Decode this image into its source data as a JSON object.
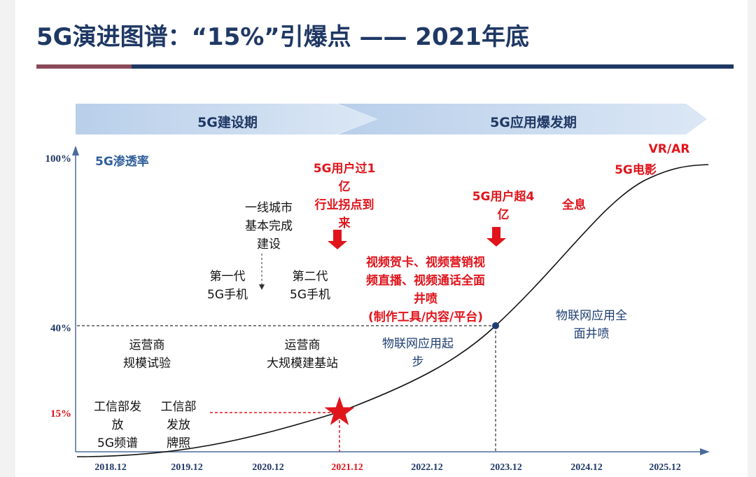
{
  "title": "5G演进图谱：“15%”引爆点 —— 2021年底",
  "phases": [
    {
      "label": "5G建设期"
    },
    {
      "label": "5G应用爆发期"
    }
  ],
  "y_axis_label": "5G渗透率",
  "y_ticks": [
    "100%",
    "40%",
    "15%"
  ],
  "x_ticks": [
    "2018.12",
    "2019.12",
    "2020.12",
    "2021.12",
    "2022.12",
    "2023.12",
    "2024.12",
    "2025.12"
  ],
  "highlight_tick": "2021.12",
  "milestones": [
    {
      "lines": [
        "工信部发",
        "放",
        "5G频谱"
      ]
    },
    {
      "lines": [
        "工信部",
        "发放",
        "牌照"
      ]
    },
    {
      "lines": [
        "运营商",
        "规模试验"
      ]
    },
    {
      "lines": [
        "运营商",
        "大规模建基站"
      ]
    },
    {
      "lines": [
        "第一代",
        "5G手机"
      ]
    },
    {
      "lines": [
        "第二代",
        "5G手机"
      ]
    },
    {
      "lines": [
        "一线城市",
        "基本完成",
        "建设"
      ]
    }
  ],
  "red_notes": [
    {
      "lines": [
        "5G用户过1",
        "亿",
        "行业拐点到",
        "来"
      ]
    },
    {
      "lines": [
        "5G用户超4",
        "亿"
      ]
    },
    {
      "lines": [
        "视频贺卡、视频营销视",
        "频直播、视频通话全面",
        "井喷",
        "(制作工具/内容/平台)"
      ]
    },
    {
      "lines": [
        "全息"
      ]
    },
    {
      "lines": [
        "5G电影"
      ]
    },
    {
      "lines": [
        "VR/AR"
      ]
    }
  ],
  "blue_notes": [
    {
      "lines": [
        "物联网应用起",
        "步"
      ]
    },
    {
      "lines": [
        "物联网应用全",
        "面井喷"
      ]
    }
  ],
  "colors": {
    "title": "#1f3864",
    "accent_red": "#e0151c",
    "note_blue": "#1f3f72",
    "arrow_band": "#c5d7ee"
  }
}
